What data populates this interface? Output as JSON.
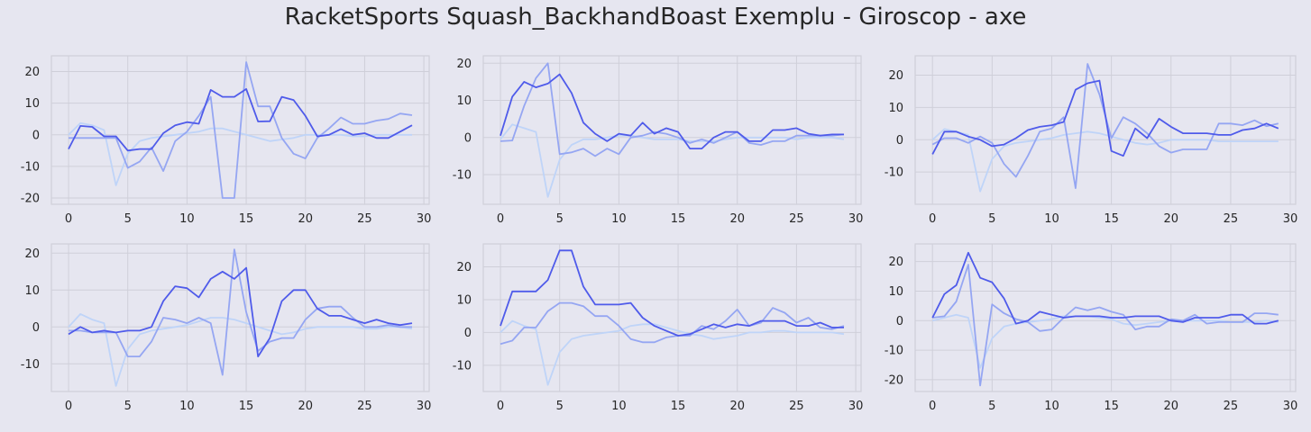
{
  "title": "RacketSports Squash_BackhandBoast Exemplu - Giroscop - axe",
  "colors": {
    "background": "#e6e6f0",
    "grid": "#cfcfd9",
    "series_a": "#4f5bea",
    "series_b": "#95a6f2",
    "series_c": "#bfd4f8"
  },
  "chart_data": [
    {
      "type": "line",
      "x": [
        0,
        1,
        2,
        3,
        4,
        5,
        6,
        7,
        8,
        9,
        10,
        11,
        12,
        13,
        14,
        15,
        16,
        17,
        18,
        19,
        20,
        21,
        22,
        23,
        24,
        25,
        26,
        27,
        28,
        29
      ],
      "xlim": [
        -1.45,
        30.45
      ],
      "ylim": [
        -22,
        25
      ],
      "xticks": [
        0,
        5,
        10,
        15,
        20,
        25,
        30
      ],
      "yticks": [
        -20,
        -10,
        0,
        10,
        20
      ],
      "series": [
        {
          "color": "#4f5bea",
          "values": [
            -4.5,
            2.8,
            2.5,
            -0.5,
            -0.5,
            -5,
            -4.5,
            -4.5,
            0.5,
            3,
            4,
            3.5,
            14.2,
            12,
            12,
            14.5,
            4.2,
            4.3,
            12,
            11,
            6,
            -0.5,
            0,
            1.8,
            0,
            0.5,
            -1,
            -1,
            1,
            3
          ]
        },
        {
          "color": "#95a6f2",
          "values": [
            -1,
            -1,
            -1,
            -1,
            -1,
            -10.5,
            -8.5,
            -4,
            -11.5,
            -2,
            1,
            6,
            12,
            -20,
            -20,
            23,
            9,
            9,
            -1,
            -6,
            -7.5,
            -1,
            2,
            5.5,
            3.5,
            3.5,
            4.5,
            5,
            6.7,
            6.2
          ]
        },
        {
          "color": "#bfd4f8",
          "values": [
            0,
            3.7,
            3,
            1.5,
            -16,
            -6,
            -2,
            -1,
            -0.5,
            0,
            0.5,
            1,
            2,
            2,
            1,
            0,
            -1,
            -2,
            -1.5,
            -1,
            0,
            0,
            0,
            0,
            -0.5,
            -0.5,
            0,
            0,
            0,
            0
          ]
        }
      ]
    },
    {
      "type": "line",
      "x": [
        0,
        1,
        2,
        3,
        4,
        5,
        6,
        7,
        8,
        9,
        10,
        11,
        12,
        13,
        14,
        15,
        16,
        17,
        18,
        19,
        20,
        21,
        22,
        23,
        24,
        25,
        26,
        27,
        28,
        29
      ],
      "xlim": [
        -1.45,
        30.45
      ],
      "ylim": [
        -18,
        22
      ],
      "xticks": [
        0,
        5,
        10,
        15,
        20,
        25,
        30
      ],
      "yticks": [
        -10,
        0,
        10,
        20
      ],
      "series": [
        {
          "color": "#4f5bea",
          "values": [
            0.5,
            11,
            15,
            13.5,
            14.5,
            17,
            12,
            4,
            1,
            -1,
            1,
            0.5,
            4,
            1,
            2.5,
            1.5,
            -3,
            -3,
            0,
            1.5,
            1.5,
            -1,
            -1,
            2,
            2,
            2.5,
            1,
            0.5,
            0.8,
            0.8
          ]
        },
        {
          "color": "#95a6f2",
          "values": [
            -1,
            -0.8,
            8.5,
            16,
            20,
            -4.5,
            -4,
            -3,
            -5,
            -3,
            -4.5,
            0,
            0.5,
            1.5,
            1,
            0,
            -1.5,
            -0.5,
            -1.5,
            0,
            1.5,
            -1.5,
            -2,
            -1,
            -1,
            0.5,
            0.5,
            0.5,
            0.5,
            0.8
          ]
        },
        {
          "color": "#bfd4f8",
          "values": [
            -0.5,
            3.5,
            2.5,
            1.5,
            -16,
            -6,
            -2,
            -0.5,
            -0.5,
            0,
            0.5,
            0.5,
            0,
            -0.5,
            -0.5,
            -0.5,
            -1,
            -1,
            -1,
            -0.5,
            0,
            0,
            0,
            0,
            0,
            -0.5,
            0,
            0,
            0,
            -0.5
          ]
        }
      ]
    },
    {
      "type": "line",
      "x": [
        0,
        1,
        2,
        3,
        4,
        5,
        6,
        7,
        8,
        9,
        10,
        11,
        12,
        13,
        14,
        15,
        16,
        17,
        18,
        19,
        20,
        21,
        22,
        23,
        24,
        25,
        26,
        27,
        28,
        29
      ],
      "xlim": [
        -1.45,
        30.45
      ],
      "ylim": [
        -20,
        26
      ],
      "xticks": [
        0,
        5,
        10,
        15,
        20,
        25,
        30
      ],
      "yticks": [
        -10,
        0,
        10,
        20
      ],
      "series": [
        {
          "color": "#4f5bea",
          "values": [
            -4.5,
            2.5,
            2.5,
            1,
            0,
            -2,
            -1.5,
            0.5,
            3,
            4,
            4.5,
            5.5,
            15.5,
            17.5,
            18.3,
            -3.5,
            -5,
            3.5,
            0.5,
            6.5,
            4,
            2,
            2,
            2,
            1.5,
            1.5,
            3,
            3.5,
            5,
            3.5
          ]
        },
        {
          "color": "#95a6f2",
          "values": [
            -1.5,
            0.5,
            0.5,
            -1,
            1,
            -1,
            -7.5,
            -11.5,
            -5,
            2.5,
            3.5,
            7,
            -15,
            23.5,
            14,
            0.5,
            7,
            5,
            2,
            -2,
            -4,
            -3,
            -3,
            -3,
            5,
            5,
            4.5,
            6,
            4.2,
            5
          ]
        },
        {
          "color": "#bfd4f8",
          "values": [
            0,
            3.3,
            2.5,
            1.5,
            -16,
            -6,
            -2,
            -1,
            -0.5,
            0,
            0.5,
            1.5,
            2,
            2.5,
            2,
            1,
            0,
            -1,
            -1.5,
            -1,
            0,
            0,
            0,
            0,
            -0.5,
            -0.5,
            -0.5,
            -0.5,
            -0.5,
            -0.5
          ]
        }
      ]
    },
    {
      "type": "line",
      "x": [
        0,
        1,
        2,
        3,
        4,
        5,
        6,
        7,
        8,
        9,
        10,
        11,
        12,
        13,
        14,
        15,
        16,
        17,
        18,
        19,
        20,
        21,
        22,
        23,
        24,
        25,
        26,
        27,
        28,
        29
      ],
      "xlim": [
        -1.45,
        30.45
      ],
      "ylim": [
        -17.5,
        22.5
      ],
      "xticks": [
        0,
        5,
        10,
        15,
        20,
        25,
        30
      ],
      "yticks": [
        -10,
        0,
        10,
        20
      ],
      "series": [
        {
          "color": "#4f5bea",
          "values": [
            -2,
            0,
            -1.5,
            -1,
            -1.5,
            -1,
            -1,
            0,
            7,
            11,
            10.5,
            8,
            13,
            15,
            13,
            16,
            -8,
            -3,
            7,
            10,
            10,
            5,
            3,
            3,
            2,
            1,
            2,
            1,
            0.5,
            1
          ]
        },
        {
          "color": "#95a6f2",
          "values": [
            -1,
            -1,
            -1.5,
            -1.5,
            -1.5,
            -8,
            -8,
            -4,
            2.5,
            2,
            1,
            2.5,
            1,
            -13,
            21,
            4,
            -6.5,
            -4,
            -3,
            -3,
            2,
            5,
            5.5,
            5.5,
            2.5,
            0,
            0,
            0.5,
            0,
            0
          ]
        },
        {
          "color": "#bfd4f8",
          "values": [
            0,
            3.5,
            2,
            1,
            -16,
            -6,
            -2,
            -1,
            -0.5,
            0,
            0.5,
            1.5,
            2.5,
            2.5,
            2,
            1,
            0,
            -1,
            -2,
            -1.5,
            -0.5,
            0,
            0,
            0,
            0,
            -0.5,
            -0.5,
            0,
            0,
            -0.5
          ]
        }
      ]
    },
    {
      "type": "line",
      "x": [
        0,
        1,
        2,
        3,
        4,
        5,
        6,
        7,
        8,
        9,
        10,
        11,
        12,
        13,
        14,
        15,
        16,
        17,
        18,
        19,
        20,
        21,
        22,
        23,
        24,
        25,
        26,
        27,
        28,
        29
      ],
      "xlim": [
        -1.45,
        30.45
      ],
      "ylim": [
        -18,
        27
      ],
      "xticks": [
        0,
        5,
        10,
        15,
        20,
        25,
        30
      ],
      "yticks": [
        -10,
        0,
        10,
        20
      ],
      "series": [
        {
          "color": "#4f5bea",
          "values": [
            2,
            12.5,
            12.5,
            12.5,
            16,
            25,
            25,
            14,
            8.5,
            8.5,
            8.5,
            9,
            4.5,
            2,
            0.5,
            -1,
            -0.5,
            1,
            2.5,
            1.5,
            2.5,
            2,
            3.5,
            3.5,
            3.5,
            2,
            2,
            3,
            1.5,
            1.5
          ]
        },
        {
          "color": "#95a6f2",
          "values": [
            -3.5,
            -2.5,
            1.5,
            1.5,
            6.5,
            9,
            9,
            8,
            5,
            5,
            2,
            -2,
            -3,
            -3,
            -1.5,
            -1,
            -1,
            2,
            1,
            3.5,
            7,
            2,
            3,
            7.5,
            6,
            3,
            4.5,
            1.5,
            1,
            2
          ]
        },
        {
          "color": "#bfd4f8",
          "values": [
            0,
            3.5,
            2,
            1,
            -16,
            -6,
            -2,
            -1,
            -0.5,
            0,
            0.5,
            2,
            2.5,
            2.5,
            1.5,
            0.5,
            -0.5,
            -1,
            -2,
            -1.5,
            -1,
            0,
            0,
            0.5,
            0.5,
            0,
            0,
            0,
            0,
            -0.5
          ]
        }
      ]
    },
    {
      "type": "line",
      "x": [
        0,
        1,
        2,
        3,
        4,
        5,
        6,
        7,
        8,
        9,
        10,
        11,
        12,
        13,
        14,
        15,
        16,
        17,
        18,
        19,
        20,
        21,
        22,
        23,
        24,
        25,
        26,
        27,
        28,
        29
      ],
      "xlim": [
        -1.45,
        30.45
      ],
      "ylim": [
        -24,
        26
      ],
      "xticks": [
        0,
        5,
        10,
        15,
        20,
        25,
        30
      ],
      "yticks": [
        -20,
        -10,
        0,
        10,
        20
      ],
      "series": [
        {
          "color": "#4f5bea",
          "values": [
            1,
            9,
            12,
            23,
            14.5,
            13,
            7.5,
            -1,
            0,
            3,
            2,
            1,
            1.5,
            1.5,
            1.5,
            1,
            1,
            1.5,
            1.5,
            1.5,
            0,
            -0.5,
            1,
            1,
            1,
            2,
            2,
            -1,
            -1,
            0
          ]
        },
        {
          "color": "#95a6f2",
          "values": [
            1,
            1.5,
            6.5,
            19,
            -22,
            5.5,
            2.5,
            0.5,
            -0.5,
            -3.5,
            -3,
            1,
            4.5,
            3.5,
            4.5,
            3,
            2,
            -3,
            -2,
            -2,
            0.5,
            0,
            2,
            -1,
            -0.5,
            -0.5,
            -0.5,
            2.5,
            2.5,
            2
          ]
        },
        {
          "color": "#bfd4f8",
          "values": [
            0,
            1,
            2,
            1,
            -16,
            -6,
            -2,
            -1,
            -0.5,
            0,
            0.5,
            1.5,
            1.5,
            1.5,
            1,
            0.5,
            -1,
            -1.5,
            -1,
            -0.5,
            0,
            0,
            0,
            0,
            0,
            -0.5,
            -0.5,
            -0.5,
            0,
            -0.5
          ]
        }
      ]
    }
  ]
}
